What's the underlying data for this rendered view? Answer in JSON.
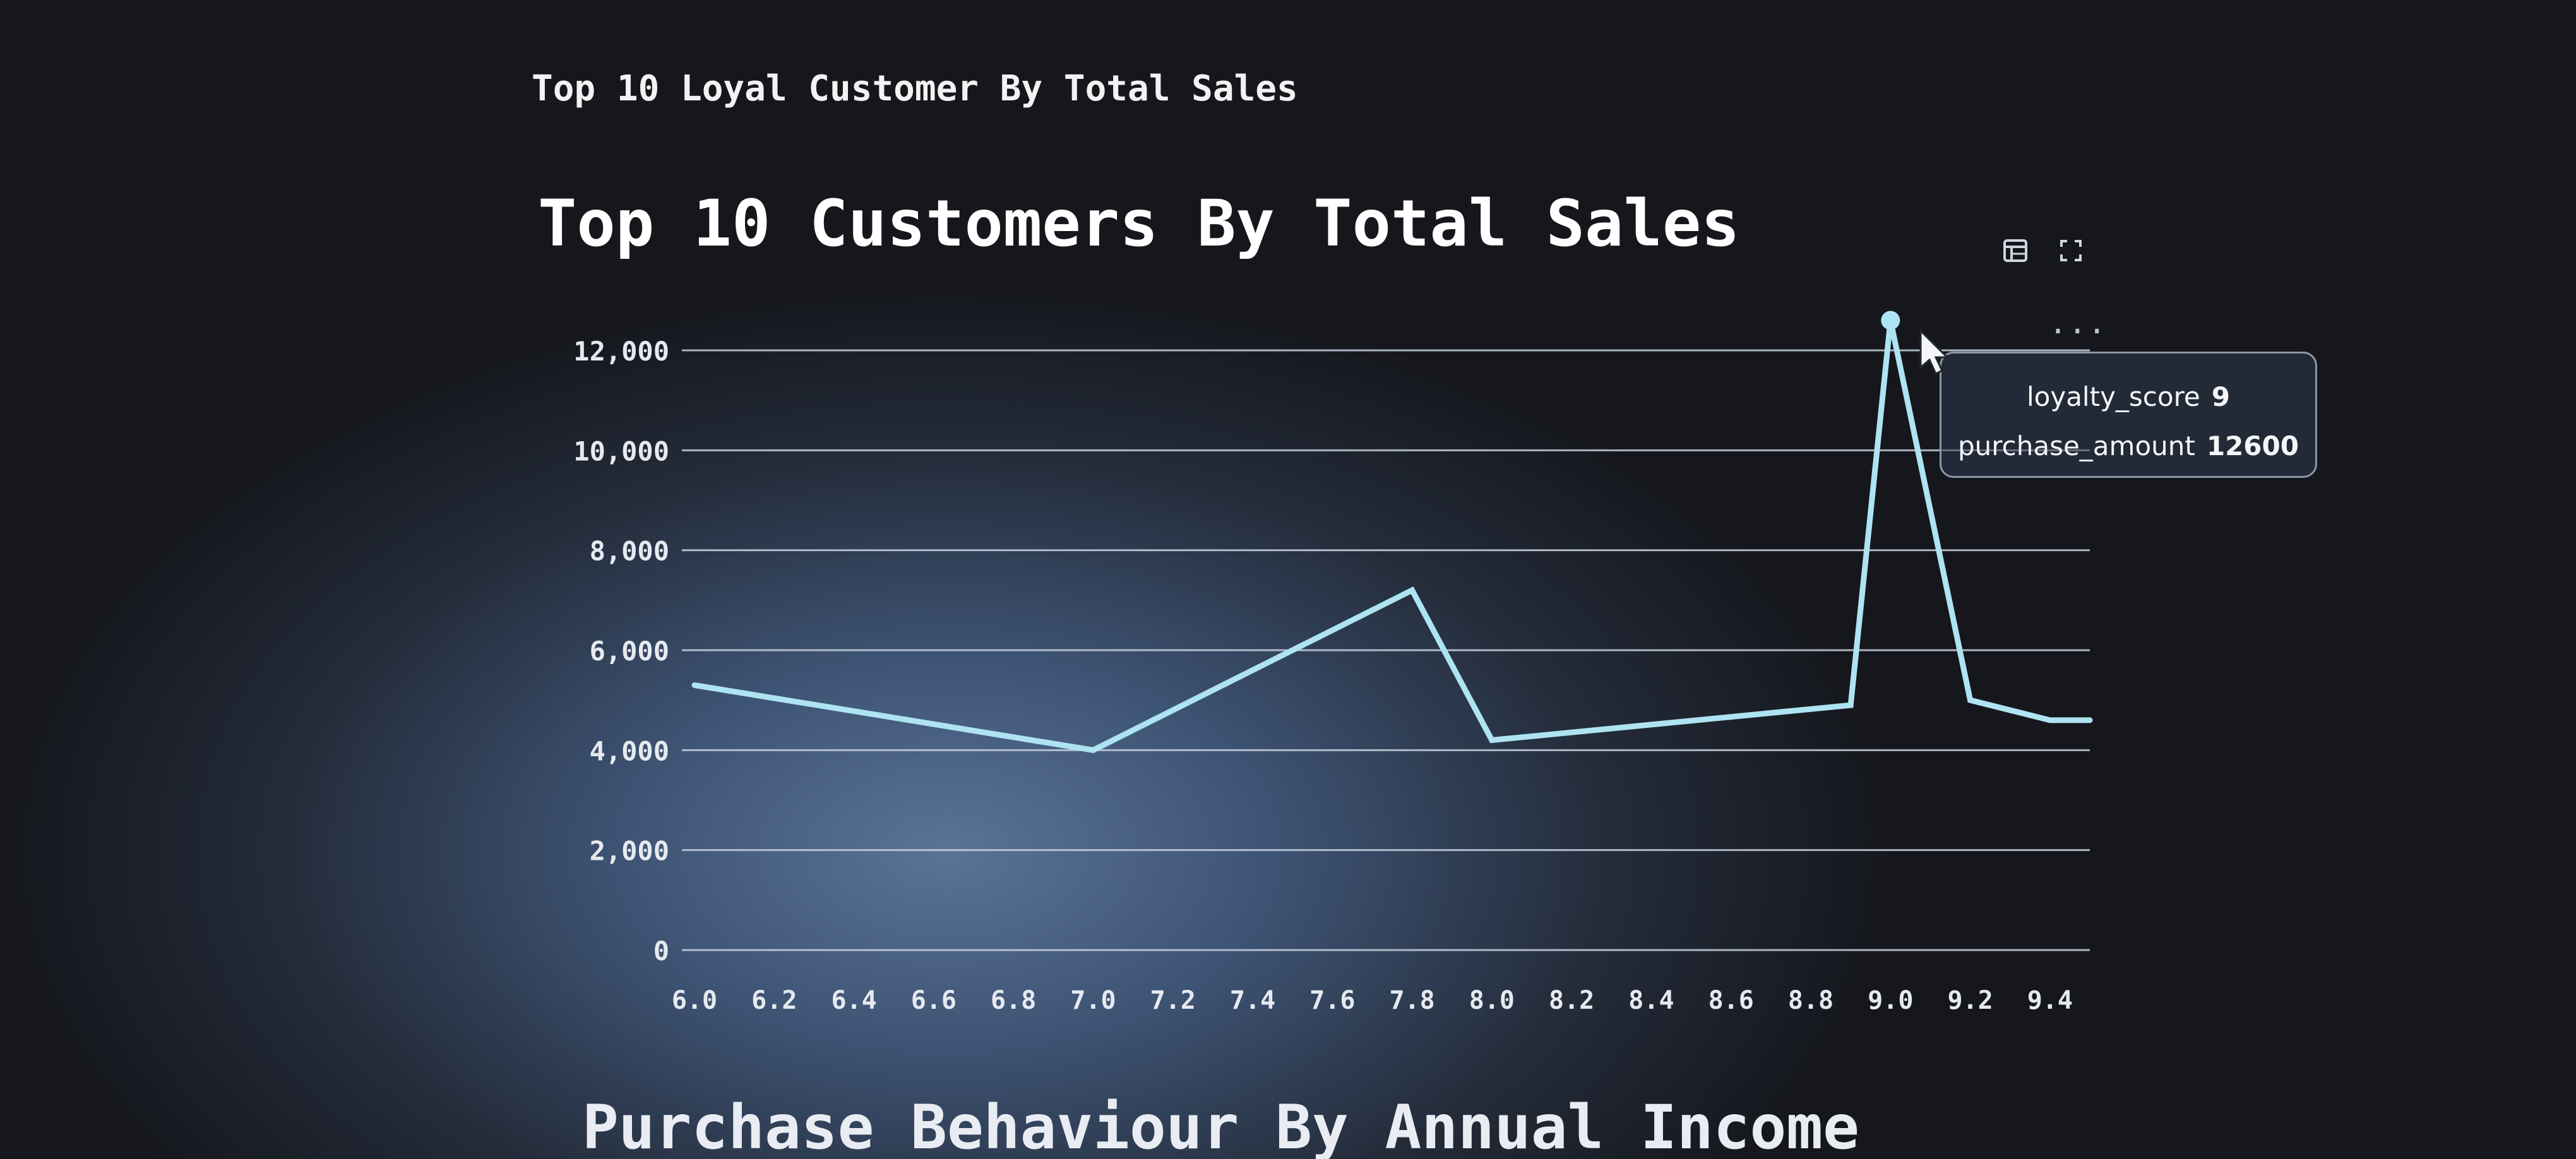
{
  "section_title": "Top 10 Loyal Customer By Total Sales",
  "toolbar": {
    "table_icon": "table-icon",
    "fullscreen_icon": "fullscreen-icon",
    "more_icon": "more-options-icon",
    "more_label": "..."
  },
  "tooltip": {
    "rows": [
      {
        "key": "loyalty_score",
        "value": "9"
      },
      {
        "key": "purchase_amount",
        "value": "12600"
      }
    ]
  },
  "next_section_title": "Purchase Behaviour By Annual Income",
  "chart_data": {
    "type": "line",
    "title": "Top 10 Customers By Total Sales",
    "xlabel": "",
    "ylabel": "",
    "x_ticks": [
      "6.0",
      "6.2",
      "6.4",
      "6.6",
      "6.8",
      "7.0",
      "7.2",
      "7.4",
      "7.6",
      "7.8",
      "8.0",
      "8.2",
      "8.4",
      "8.6",
      "8.8",
      "9.0",
      "9.2",
      "9.4"
    ],
    "y_ticks": [
      "0",
      "2,000",
      "4,000",
      "6,000",
      "8,000",
      "10,000",
      "12,000"
    ],
    "xlim": [
      6.0,
      9.5
    ],
    "ylim": [
      0,
      12000
    ],
    "grid": true,
    "line_color": "#aee3f2",
    "series": [
      {
        "x": [
          6.0,
          7.0,
          7.8,
          8.0,
          8.9,
          9.0,
          9.2,
          9.4,
          9.5
        ],
        "y": [
          5300,
          4000,
          7200,
          4200,
          4900,
          12600,
          5000,
          4600,
          4600
        ]
      }
    ],
    "highlight_point": {
      "x": 9.0,
      "y": 12600
    }
  }
}
